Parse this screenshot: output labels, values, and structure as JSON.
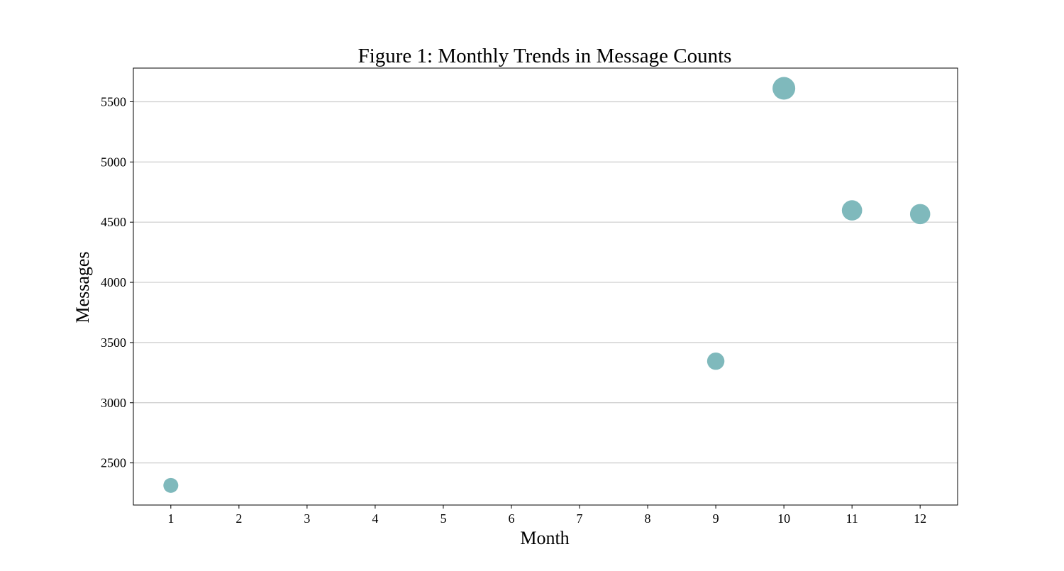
{
  "chart_data": {
    "type": "scatter",
    "title": "Figure 1: Monthly Trends in Message Counts",
    "xlabel": "Month",
    "ylabel": "Messages",
    "x_ticks": [
      1,
      2,
      3,
      4,
      5,
      6,
      7,
      8,
      9,
      10,
      11,
      12
    ],
    "y_ticks": [
      2500,
      3000,
      3500,
      4000,
      4500,
      5000,
      5500
    ],
    "xlim": [
      0.45,
      12.55
    ],
    "ylim": [
      2150,
      5780
    ],
    "grid": "y-axis",
    "legend": "none",
    "marker_color": "#7fb9bc",
    "grid_color": "#cccccc",
    "points": [
      {
        "x": 1,
        "y": 2313
      },
      {
        "x": 9,
        "y": 3345
      },
      {
        "x": 10,
        "y": 5612
      },
      {
        "x": 11,
        "y": 4598
      },
      {
        "x": 12,
        "y": 4567
      }
    ]
  }
}
